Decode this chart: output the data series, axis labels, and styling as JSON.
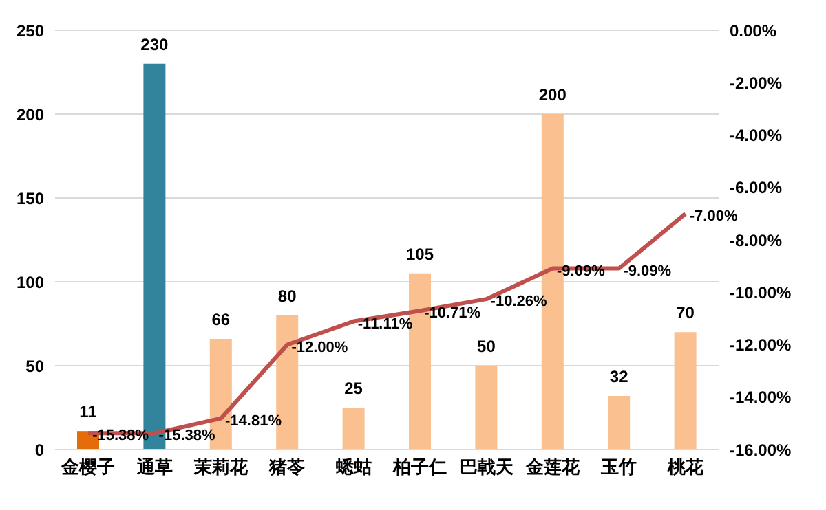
{
  "chart_data": {
    "type": "bar",
    "categories": [
      "金樱子",
      "通草",
      "茉莉花",
      "猪苓",
      "蟋蛄",
      "柏子仁",
      "巴戟天",
      "金莲花",
      "玉竹",
      "桃花"
    ],
    "series": [
      {
        "colors": [
          "#e46c0a",
          "#31849b",
          "#fac090",
          "#fac090",
          "#fac090",
          "#fac090",
          "#fac090",
          "#fac090",
          "#fac090",
          "#fac090"
        ],
        "values": [
          11,
          230,
          66,
          80,
          25,
          105,
          50,
          200,
          32,
          70
        ],
        "value_labels": [
          "11",
          "230",
          "66",
          "80",
          "25",
          "105",
          "50",
          "200",
          "32",
          "70"
        ]
      },
      {
        "type": "line",
        "axis": "y2",
        "color": "#c0504d",
        "values": [
          -15.38,
          -15.38,
          -14.81,
          -12.0,
          -11.11,
          -10.71,
          -10.26,
          -9.09,
          -9.09,
          -7.0
        ],
        "value_labels": [
          "-15.38%",
          "-15.38%",
          "-14.81%",
          "-12.00%",
          "-11.11%",
          "-10.71%",
          "-10.26%",
          "-9.09%",
          "-9.09%",
          "-7.00%"
        ]
      }
    ],
    "ylim": [
      0,
      250
    ],
    "yticks": [
      0,
      50,
      100,
      150,
      200,
      250
    ],
    "y2lim": [
      -16,
      0
    ],
    "y2ticks": [
      {
        "value": -16,
        "label": "-16.00%"
      },
      {
        "value": -14,
        "label": "-14.00%"
      },
      {
        "value": -12,
        "label": "-12.00%"
      },
      {
        "value": -10,
        "label": "-10.00%"
      },
      {
        "value": -8,
        "label": "-8.00%"
      },
      {
        "value": -6,
        "label": "-6.00%"
      },
      {
        "value": -4,
        "label": "-4.00%"
      },
      {
        "value": -2,
        "label": "-2.00%"
      },
      {
        "value": 0,
        "label": "0.00%"
      }
    ],
    "grid": "y",
    "legend": false,
    "marker": "none",
    "line_style": "solid"
  }
}
